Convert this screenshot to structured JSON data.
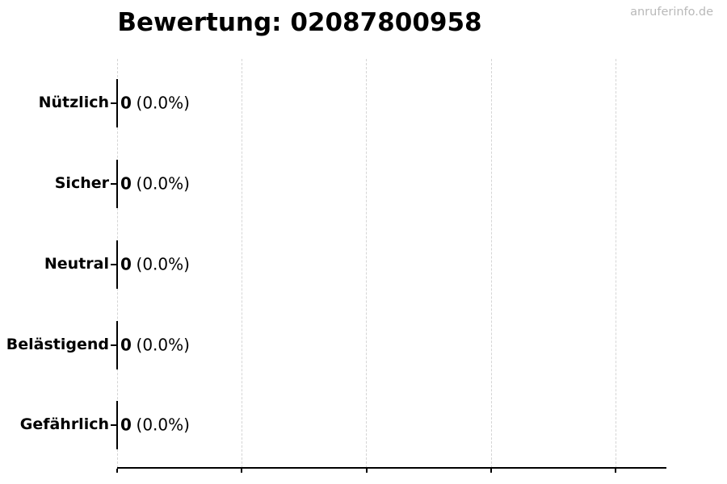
{
  "title": "Bewertung: 02087800958",
  "watermark": "anruferinfo.de",
  "chart_data": {
    "type": "bar",
    "orientation": "horizontal",
    "title": "Bewertung: 02087800958",
    "categories": [
      "Nützlich",
      "Sicher",
      "Neutral",
      "Belästigend",
      "Gefährlich"
    ],
    "values": [
      0,
      0,
      0,
      0,
      0
    ],
    "bar_labels": [
      "0 (0.0%)",
      "0 (0.0%)",
      "0 (0.0%)",
      "0 (0.0%)",
      "0 (0.0%)"
    ],
    "xlabel": "",
    "ylabel": "",
    "x_axis": {
      "tick_count": 5,
      "tick_labels_visible": false,
      "gridlines": "vertical-dashed"
    },
    "legend": null
  },
  "colors": {
    "background": "#ffffff",
    "text": "#000000",
    "gridline": "#d5d5d5",
    "axis": "#000000",
    "watermark": "#b9b9b9"
  }
}
